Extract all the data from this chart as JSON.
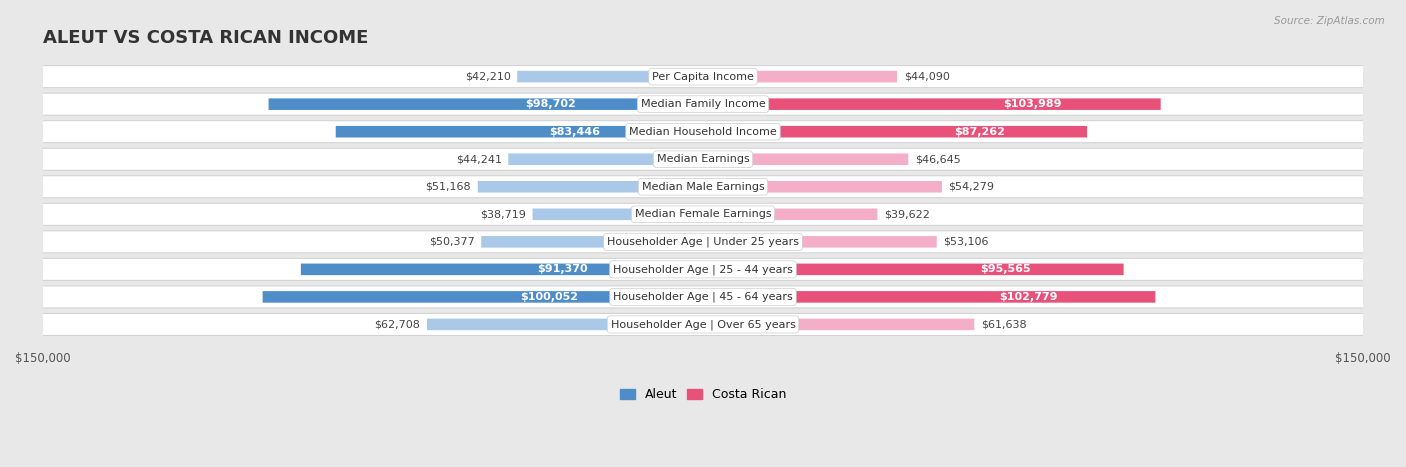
{
  "title": "ALEUT VS COSTA RICAN INCOME",
  "source": "Source: ZipAtlas.com",
  "categories": [
    "Per Capita Income",
    "Median Family Income",
    "Median Household Income",
    "Median Earnings",
    "Median Male Earnings",
    "Median Female Earnings",
    "Householder Age | Under 25 years",
    "Householder Age | 25 - 44 years",
    "Householder Age | 45 - 64 years",
    "Householder Age | Over 65 years"
  ],
  "aleut_values": [
    42210,
    98702,
    83446,
    44241,
    51168,
    38719,
    50377,
    91370,
    100052,
    62708
  ],
  "costa_rican_values": [
    44090,
    103989,
    87262,
    46645,
    54279,
    39622,
    53106,
    95565,
    102779,
    61638
  ],
  "aleut_labels": [
    "$42,210",
    "$98,702",
    "$83,446",
    "$44,241",
    "$51,168",
    "$38,719",
    "$50,377",
    "$91,370",
    "$100,052",
    "$62,708"
  ],
  "costa_rican_labels": [
    "$44,090",
    "$103,989",
    "$87,262",
    "$46,645",
    "$54,279",
    "$39,622",
    "$53,106",
    "$95,565",
    "$102,779",
    "$61,638"
  ],
  "aleut_color_light": "#aac9e8",
  "aleut_color_dark": "#4f8dc9",
  "costa_rican_color_light": "#f5aec8",
  "costa_rican_color_dark": "#e8527a",
  "max_value": 150000,
  "background_color": "#e8e8e8",
  "row_bg_color": "#f5f5f5",
  "title_fontsize": 13,
  "label_fontsize": 8,
  "category_fontsize": 8,
  "legend_aleut": "Aleut",
  "legend_costa_rican": "Costa Rican",
  "threshold": 70000
}
